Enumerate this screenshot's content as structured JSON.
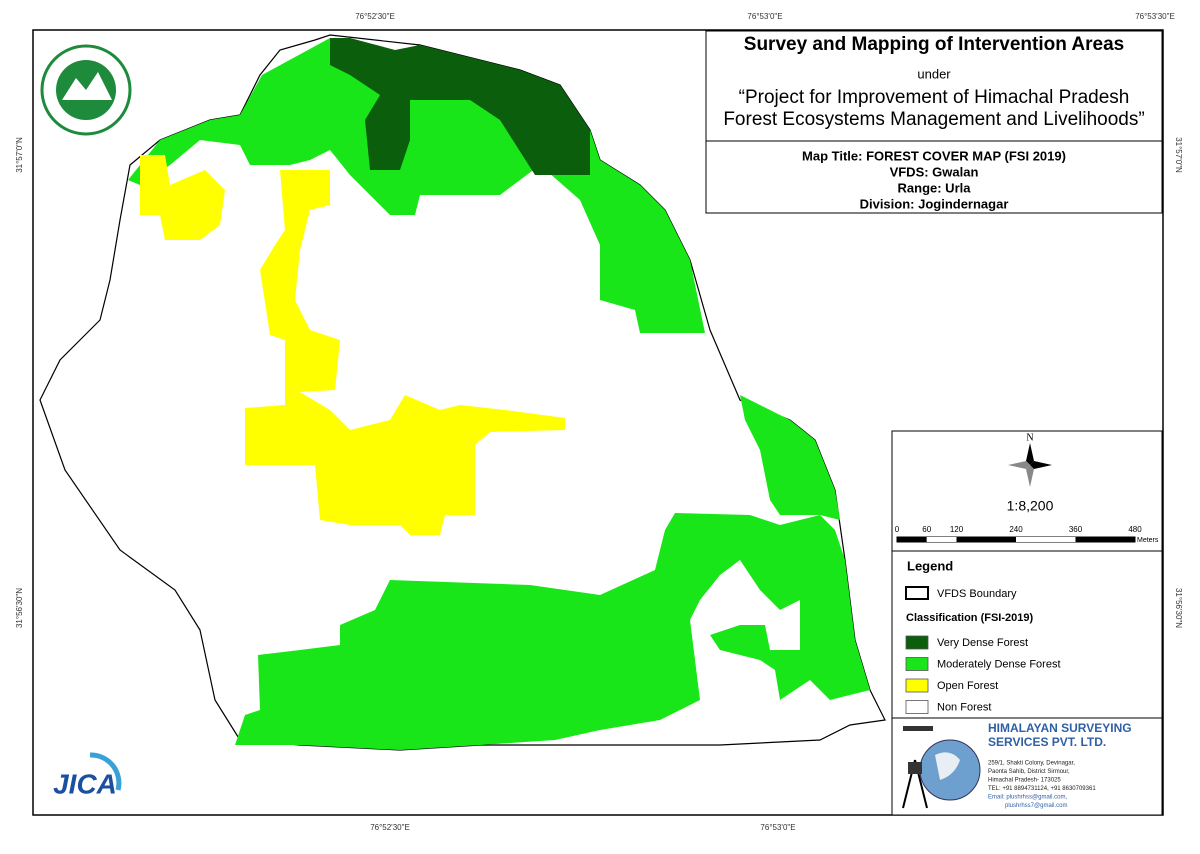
{
  "frame_labels": {
    "top": [
      "76°52'30\"E",
      "76°53'0\"E",
      "76°53'30\"E"
    ],
    "bottom": [
      "76°52'30\"E",
      "76°53'0\"E"
    ],
    "left": [
      "31°57'0\"N",
      "31°56'30\"N"
    ],
    "right": [
      "31°57'0\"N",
      "31°56'30\"N"
    ]
  },
  "header": {
    "title": "Survey and Mapping of Intervention Areas",
    "under": "under",
    "project_line1": "“Project for Improvement of Himachal Pradesh",
    "project_line2": "Forest Ecosystems Management and Livelihoods”"
  },
  "map_info": [
    "Map Title: FOREST COVER MAP (FSI 2019)",
    "VFDS: Gwalan",
    "Range: Urla",
    "Division: Jogindernagar"
  ],
  "north": "N",
  "scale": "1:8,200",
  "scale_bar": {
    "labels": [
      0,
      60,
      120,
      240,
      360,
      480
    ],
    "unit": "Meters"
  },
  "legend": {
    "title": "Legend",
    "boundary": "VFDS Boundary",
    "classification": "Classification (FSI-2019)",
    "classes": [
      {
        "label": "Very Dense Forest",
        "color": "#0b5e0b"
      },
      {
        "label": "Moderately Dense Forest",
        "color": "#19e619"
      },
      {
        "label": "Open Forest",
        "color": "#ffff00"
      },
      {
        "label": "Non Forest",
        "color": "#ffffff"
      }
    ]
  },
  "company": {
    "name1": "HIMALAYAN SURVEYING",
    "name2": "SERVICES PVT. LTD.",
    "address": [
      "259/1, Shakti Colony, Devinagar,",
      "Paonta Sahib, District Sirmour,",
      "Himachal Pradesh- 173025",
      "TEL: +91 8894731124, +91 8630709361",
      "Email: plushrhss@gmail.com,",
      "plushrhss7@gmail.com"
    ]
  },
  "logos": {
    "jica": "JICA"
  }
}
